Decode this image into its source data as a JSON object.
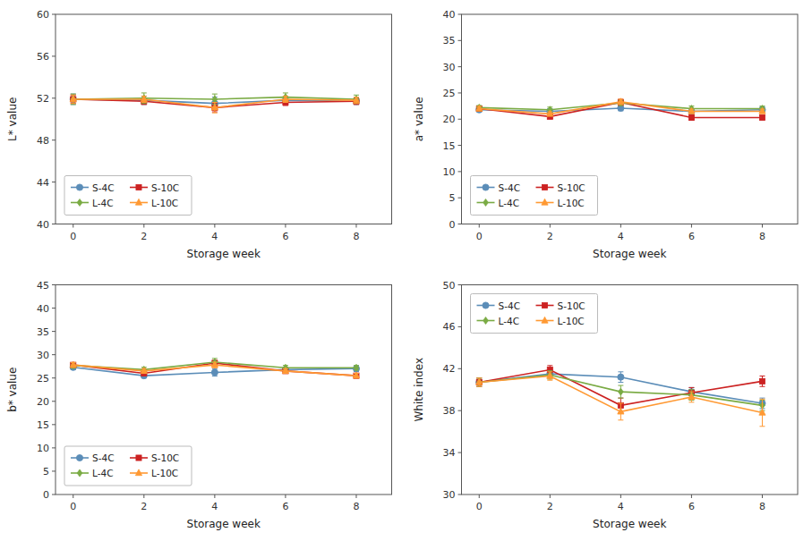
{
  "chart_data": [
    {
      "type": "line",
      "xlabel": "Storage week",
      "ylabel": "L* value",
      "x": [
        0,
        2,
        4,
        6,
        8
      ],
      "xlim": [
        -0.5,
        9
      ],
      "xticks": [
        0,
        2,
        4,
        6,
        8
      ],
      "ylim": [
        40,
        60
      ],
      "yticks": [
        40,
        44,
        48,
        52,
        56,
        60
      ],
      "grid": false,
      "legend": "lower left",
      "series": [
        {
          "name": "S-4C",
          "color": "#5B8DB8",
          "marker": "circle",
          "values": [
            51.9,
            51.8,
            51.5,
            51.8,
            51.7
          ],
          "errors": [
            0.5,
            0.4,
            0.6,
            0.4,
            0.3
          ]
        },
        {
          "name": "S-10C",
          "color": "#CC2222",
          "marker": "square",
          "values": [
            51.9,
            51.7,
            51.1,
            51.6,
            51.7
          ],
          "errors": [
            0.4,
            0.3,
            0.4,
            0.3,
            0.3
          ]
        },
        {
          "name": "L-4C",
          "color": "#7AAB44",
          "marker": "diamond",
          "values": [
            51.9,
            52.0,
            51.9,
            52.1,
            51.9
          ],
          "errors": [
            0.5,
            0.5,
            0.5,
            0.4,
            0.4
          ]
        },
        {
          "name": "L-10C",
          "color": "#FF9933",
          "marker": "triangle-up",
          "values": [
            51.9,
            51.9,
            51.1,
            51.9,
            51.8
          ],
          "errors": [
            0.4,
            0.3,
            0.5,
            0.3,
            0.3
          ]
        }
      ]
    },
    {
      "type": "line",
      "xlabel": "Storage week",
      "ylabel": "a* value",
      "x": [
        0,
        2,
        4,
        6,
        8
      ],
      "xlim": [
        -0.5,
        9
      ],
      "xticks": [
        0,
        2,
        4,
        6,
        8
      ],
      "ylim": [
        0,
        40
      ],
      "yticks": [
        0,
        5,
        10,
        15,
        20,
        25,
        30,
        35,
        40
      ],
      "grid": false,
      "legend": "lower left",
      "series": [
        {
          "name": "S-4C",
          "color": "#5B8DB8",
          "marker": "circle",
          "values": [
            21.8,
            21.5,
            22.1,
            21.5,
            21.8
          ],
          "errors": [
            0.4,
            0.5,
            0.5,
            0.5,
            0.5
          ]
        },
        {
          "name": "S-10C",
          "color": "#CC2222",
          "marker": "square",
          "values": [
            22.0,
            20.5,
            23.2,
            20.3,
            20.3
          ],
          "errors": [
            0.4,
            0.4,
            0.6,
            0.5,
            0.4
          ]
        },
        {
          "name": "L-4C",
          "color": "#7AAB44",
          "marker": "diamond",
          "values": [
            22.2,
            21.8,
            23.1,
            22.0,
            22.0
          ],
          "errors": [
            0.4,
            0.5,
            0.5,
            0.5,
            0.5
          ]
        },
        {
          "name": "L-10C",
          "color": "#FF9933",
          "marker": "triangle-up",
          "values": [
            22.0,
            21.0,
            23.3,
            21.5,
            21.5
          ],
          "errors": [
            0.4,
            0.4,
            0.5,
            0.4,
            0.4
          ]
        }
      ]
    },
    {
      "type": "line",
      "xlabel": "Storage week",
      "ylabel": "b* value",
      "x": [
        0,
        2,
        4,
        6,
        8
      ],
      "xlim": [
        -0.5,
        9
      ],
      "xticks": [
        0,
        2,
        4,
        6,
        8
      ],
      "ylim": [
        0,
        45
      ],
      "yticks": [
        0,
        5,
        10,
        15,
        20,
        25,
        30,
        35,
        40,
        45
      ],
      "grid": false,
      "legend": "lower left",
      "series": [
        {
          "name": "S-4C",
          "color": "#5B8DB8",
          "marker": "circle",
          "values": [
            27.3,
            25.5,
            26.2,
            26.8,
            27.0
          ],
          "errors": [
            0.5,
            0.5,
            0.8,
            0.5,
            0.6
          ]
        },
        {
          "name": "S-10C",
          "color": "#CC2222",
          "marker": "square",
          "values": [
            27.8,
            26.0,
            28.2,
            26.5,
            25.5
          ],
          "errors": [
            0.5,
            0.5,
            0.6,
            0.5,
            0.5
          ]
        },
        {
          "name": "L-4C",
          "color": "#7AAB44",
          "marker": "diamond",
          "values": [
            27.7,
            26.8,
            28.4,
            27.2,
            27.2
          ],
          "errors": [
            0.6,
            0.5,
            0.8,
            0.5,
            0.5
          ]
        },
        {
          "name": "L-10C",
          "color": "#FF9933",
          "marker": "triangle-up",
          "values": [
            27.8,
            26.5,
            27.8,
            26.5,
            25.5
          ],
          "errors": [
            0.5,
            0.5,
            0.6,
            0.5,
            0.5
          ]
        }
      ]
    },
    {
      "type": "line",
      "xlabel": "Storage week",
      "ylabel": "White index",
      "x": [
        0,
        2,
        4,
        6,
        8
      ],
      "xlim": [
        -0.5,
        9
      ],
      "xticks": [
        0,
        2,
        4,
        6,
        8
      ],
      "ylim": [
        30,
        50
      ],
      "yticks": [
        30,
        34,
        38,
        42,
        46,
        50
      ],
      "grid": false,
      "legend": "upper left",
      "series": [
        {
          "name": "S-4C",
          "color": "#5B8DB8",
          "marker": "circle",
          "values": [
            40.7,
            41.5,
            41.2,
            39.8,
            38.7
          ],
          "errors": [
            0.4,
            0.4,
            0.5,
            0.4,
            0.5
          ]
        },
        {
          "name": "S-10C",
          "color": "#CC2222",
          "marker": "square",
          "values": [
            40.7,
            41.9,
            38.5,
            39.7,
            40.8
          ],
          "errors": [
            0.4,
            0.4,
            0.7,
            0.5,
            0.5
          ]
        },
        {
          "name": "L-4C",
          "color": "#7AAB44",
          "marker": "diamond",
          "values": [
            40.7,
            41.4,
            39.8,
            39.5,
            38.5
          ],
          "errors": [
            0.4,
            0.4,
            0.6,
            0.5,
            0.5
          ]
        },
        {
          "name": "L-10C",
          "color": "#FF9933",
          "marker": "triangle-up",
          "values": [
            40.7,
            41.3,
            37.9,
            39.3,
            37.8
          ],
          "errors": [
            0.4,
            0.4,
            0.8,
            0.5,
            1.3
          ]
        }
      ]
    }
  ]
}
